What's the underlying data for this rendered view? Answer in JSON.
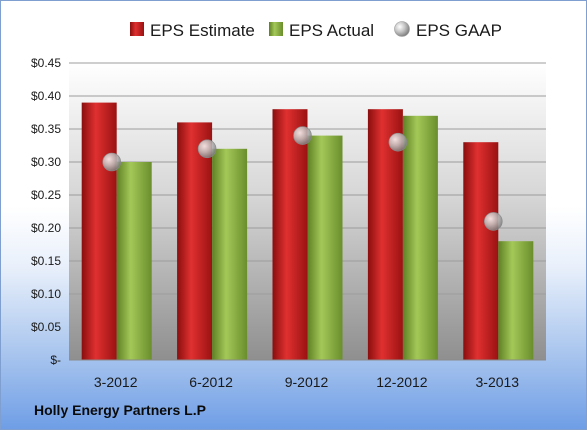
{
  "company": "Holly Energy Partners L.P",
  "colors": {
    "estimate": "#c81e1e",
    "actual": "#8cb43c",
    "gaap": "#c8c8c8"
  },
  "chart_data": {
    "type": "bar",
    "title": "",
    "xlabel": "",
    "ylabel": "",
    "categories": [
      "3-2012",
      "6-2012",
      "9-2012",
      "12-2012",
      "3-2013"
    ],
    "series": [
      {
        "name": "EPS Estimate",
        "kind": "bar",
        "values": [
          0.39,
          0.36,
          0.38,
          0.38,
          0.33
        ]
      },
      {
        "name": "EPS Actual",
        "kind": "bar",
        "values": [
          0.3,
          0.32,
          0.34,
          0.37,
          0.18
        ]
      },
      {
        "name": "EPS GAAP",
        "kind": "marker",
        "values": [
          0.3,
          0.32,
          0.34,
          0.33,
          0.21
        ]
      }
    ],
    "ylim": [
      0,
      0.45
    ],
    "yticks": [
      0,
      0.05,
      0.1,
      0.15,
      0.2,
      0.25,
      0.3,
      0.35,
      0.4,
      0.45
    ],
    "ytick_labels": [
      "$-",
      "$0.05",
      "$0.10",
      "$0.15",
      "$0.20",
      "$0.25",
      "$0.30",
      "$0.35",
      "$0.40",
      "$0.45"
    ],
    "grid": true,
    "legend": "top"
  }
}
